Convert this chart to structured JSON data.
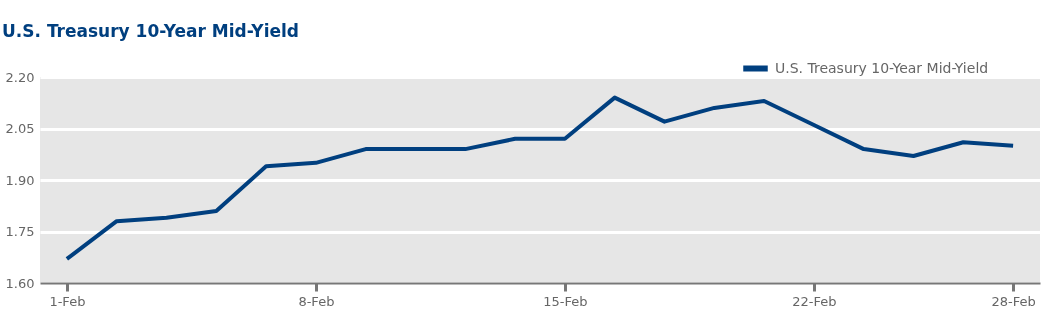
{
  "chart_data": {
    "type": "line",
    "title": "U.S. Treasury 10-Year Mid-Yield",
    "categories": [
      "1-Feb",
      null,
      null,
      null,
      null,
      "8-Feb",
      null,
      null,
      null,
      null,
      "15-Feb",
      null,
      null,
      null,
      null,
      "22-Feb",
      null,
      null,
      null,
      "28-Feb"
    ],
    "ylim": [
      1.6,
      2.2
    ],
    "yticks": [
      {
        "value": 1.6,
        "label": "1.60"
      },
      {
        "value": 1.75,
        "label": "1.75"
      },
      {
        "value": 1.9,
        "label": "1.90"
      },
      {
        "value": 2.05,
        "label": "2.05"
      },
      {
        "value": 2.2,
        "label": "2.20"
      }
    ],
    "series": [
      {
        "name": "U.S. Treasury 10-Year Mid-Yield",
        "color": "#003f7f",
        "values": [
          1.67,
          1.78,
          1.79,
          1.81,
          1.94,
          1.95,
          1.99,
          1.99,
          1.99,
          2.02,
          2.02,
          2.14,
          2.07,
          2.11,
          2.13,
          2.06,
          1.99,
          1.97,
          2.01,
          2.0
        ]
      }
    ],
    "grid": "y",
    "legend": "top right",
    "line_style": "solid",
    "marker": "none"
  }
}
